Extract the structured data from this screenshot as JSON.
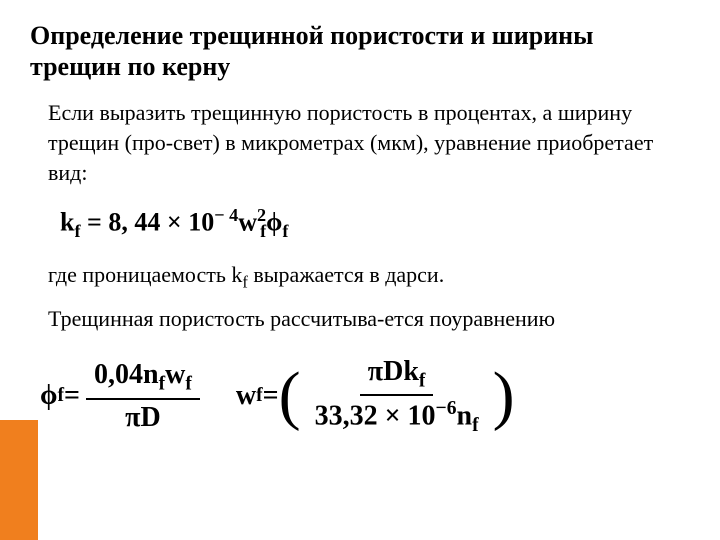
{
  "title": "Определение трещинной пористости и ширины трещин по керну",
  "paragraph_intro": "Если выразить трещинную пористость в процентах, а ширину трещин (про-свет) в микрометрах (мкм), уравнение  приобретает вид:",
  "equation1": {
    "lhs_var": "k",
    "lhs_sub": "f",
    "equals": " =  ",
    "coef": "8, 44",
    "times": " × ",
    "base": "10",
    "exp_neg": "− 4",
    "w_var": "w",
    "w_sub": "f",
    "w_sup": "2",
    "phi": "ϕ",
    "phi_sub": "f"
  },
  "paragraph_where": "где проницаемость k",
  "paragraph_where_sub": "f",
  "paragraph_where_cont": " выражается в дарси.",
  "paragraph_second": "Трещинная пористость рассчитыва-ется поуравнению",
  "equation2": {
    "phi": "ϕ",
    "phi_sub": "f",
    "equals": " = ",
    "num": "0,04n",
    "num_sub1": "f",
    "num_w": "w",
    "num_sub2": "f",
    "den_pi": "π",
    "den_D": "D"
  },
  "equation3": {
    "w": "w",
    "w_sub": "f",
    "equals": " = ",
    "num_pi": "π",
    "num_D": "D",
    "num_k": "k",
    "num_ksub": "f",
    "den": "33,32 × 10",
    "den_exp": "−6",
    "den_n": "n",
    "den_nsub": "f"
  },
  "colors": {
    "text": "#000000",
    "background": "#ffffff",
    "accent": "#f07f1e"
  }
}
